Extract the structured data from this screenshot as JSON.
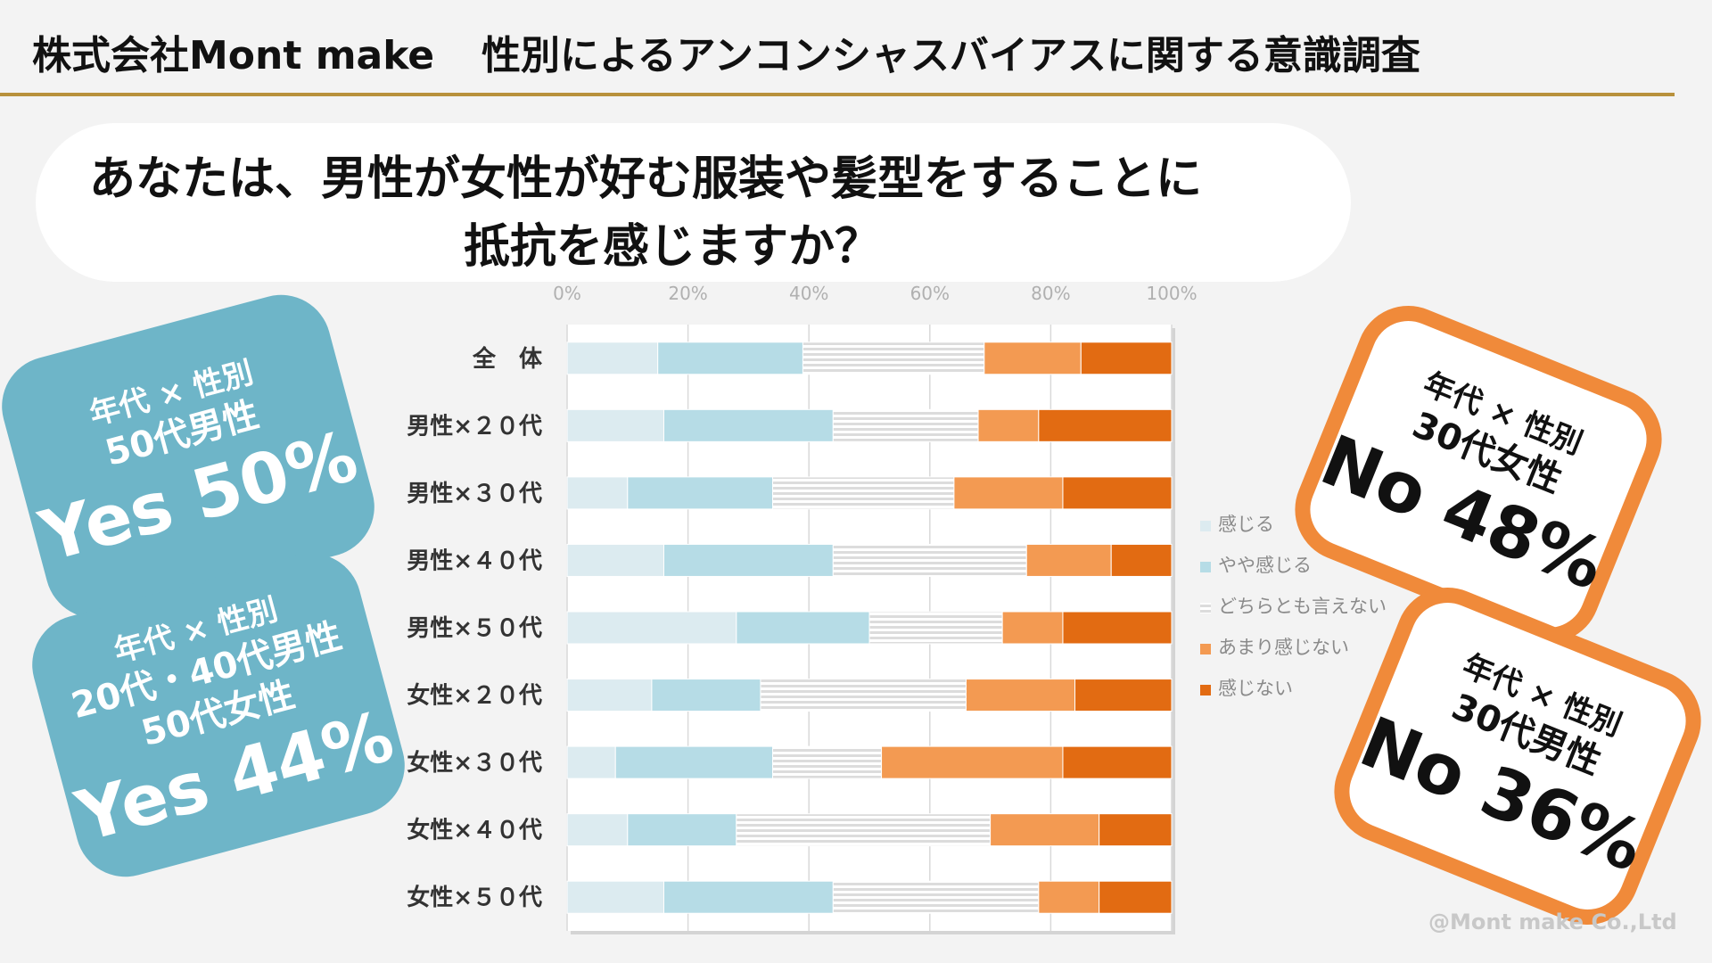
{
  "header": {
    "company": "株式会社Mont make",
    "title": "性別によるアンコンシャスバイアスに関する意識調査"
  },
  "question": {
    "line1": "あなたは、男性が女性が好む服装や髪型をすることに",
    "line2": "抵抗を感じますか？"
  },
  "chart_data": {
    "type": "bar",
    "orientation": "horizontal",
    "stacked": true,
    "normalized_percent": true,
    "xlim": [
      0,
      100
    ],
    "x_ticks": [
      "0%",
      "20%",
      "40%",
      "60%",
      "80%",
      "100%"
    ],
    "categories": [
      "全　体",
      "男性×２０代",
      "男性×３０代",
      "男性×４０代",
      "男性×５０代",
      "女性×２０代",
      "女性×３０代",
      "女性×４０代",
      "女性×５０代"
    ],
    "series": [
      {
        "name": "感じる",
        "color": "#dcebf0",
        "values": [
          15,
          16,
          10,
          16,
          28,
          14,
          8,
          10,
          16
        ]
      },
      {
        "name": "やや感じる",
        "color": "#b6dce6",
        "values": [
          24,
          28,
          24,
          28,
          22,
          18,
          26,
          18,
          28
        ]
      },
      {
        "name": "どちらとも言えない",
        "color": "#dedede",
        "hatched": true,
        "values": [
          30,
          24,
          30,
          32,
          22,
          34,
          18,
          42,
          34
        ]
      },
      {
        "name": "あまり感じない",
        "color": "#f39a52",
        "values": [
          16,
          10,
          18,
          14,
          10,
          18,
          30,
          18,
          10
        ]
      },
      {
        "name": "感じない",
        "color": "#e26b12",
        "values": [
          15,
          22,
          18,
          10,
          18,
          16,
          18,
          12,
          12
        ]
      }
    ],
    "legend_position": "right",
    "grid": true
  },
  "callouts": {
    "left_top": {
      "sub": "年代 × 性別",
      "group": "50代男性",
      "result": "Yes 50%"
    },
    "left_bottom": {
      "sub": "年代 × 性別",
      "group1": "20代・40代男性",
      "group2": "50代女性",
      "result": "Yes 44%"
    },
    "right_top": {
      "sub": "年代 × 性別",
      "group": "30代女性",
      "result": "No 48%"
    },
    "right_bottom": {
      "sub": "年代 × 性別",
      "group": "30代男性",
      "result": "No 36%"
    }
  },
  "footer": {
    "copyright": "@Mont make Co.,Ltd"
  },
  "colors": {
    "accent_gold": "#b8913c",
    "callout_blue": "#6eb5c8",
    "callout_orange": "#f08a3a"
  }
}
